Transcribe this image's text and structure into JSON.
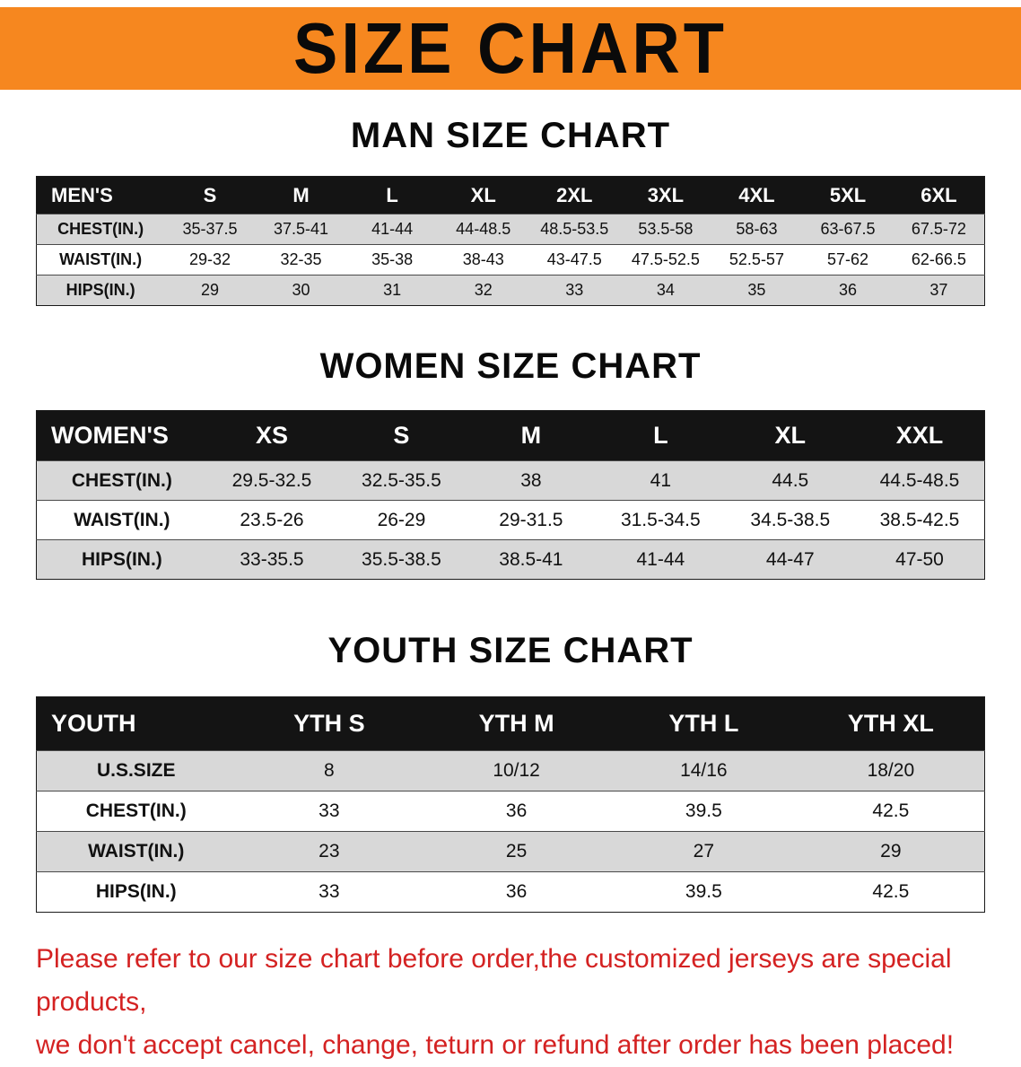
{
  "banner": {
    "title": "SIZE CHART"
  },
  "colors": {
    "banner_orange": "#f6871f",
    "header_black": "#141414",
    "row_gray": "#d8d8d8",
    "disclaimer_red": "#d42222"
  },
  "sections": [
    {
      "heading": "MAN SIZE CHART",
      "table": {
        "title": "MEN'S",
        "columns": [
          "S",
          "M",
          "L",
          "XL",
          "2XL",
          "3XL",
          "4XL",
          "5XL",
          "6XL"
        ],
        "rows": [
          {
            "label": "CHEST(IN.)",
            "values": [
              "35-37.5",
              "37.5-41",
              "41-44",
              "44-48.5",
              "48.5-53.5",
              "53.5-58",
              "58-63",
              "63-67.5",
              "67.5-72"
            ]
          },
          {
            "label": "WAIST(IN.)",
            "values": [
              "29-32",
              "32-35",
              "35-38",
              "38-43",
              "43-47.5",
              "47.5-52.5",
              "52.5-57",
              "57-62",
              "62-66.5"
            ]
          },
          {
            "label": "HIPS(IN.)",
            "values": [
              "29",
              "30",
              "31",
              "32",
              "33",
              "34",
              "35",
              "36",
              "37"
            ]
          }
        ]
      }
    },
    {
      "heading": "WOMEN SIZE CHART",
      "table": {
        "title": "WOMEN'S",
        "columns": [
          "XS",
          "S",
          "M",
          "L",
          "XL",
          "XXL"
        ],
        "rows": [
          {
            "label": "CHEST(IN.)",
            "values": [
              "29.5-32.5",
              "32.5-35.5",
              "38",
              "41",
              "44.5",
              "44.5-48.5"
            ]
          },
          {
            "label": "WAIST(IN.)",
            "values": [
              "23.5-26",
              "26-29",
              "29-31.5",
              "31.5-34.5",
              "34.5-38.5",
              "38.5-42.5"
            ]
          },
          {
            "label": "HIPS(IN.)",
            "values": [
              "33-35.5",
              "35.5-38.5",
              "38.5-41",
              "41-44",
              "44-47",
              "47-50"
            ]
          }
        ]
      }
    },
    {
      "heading": "YOUTH SIZE CHART",
      "table": {
        "title": "YOUTH",
        "columns": [
          "YTH S",
          "YTH M",
          "YTH L",
          "YTH XL"
        ],
        "rows": [
          {
            "label": "U.S.SIZE",
            "values": [
              "8",
              "10/12",
              "14/16",
              "18/20"
            ]
          },
          {
            "label": "CHEST(IN.)",
            "values": [
              "33",
              "36",
              "39.5",
              "42.5"
            ]
          },
          {
            "label": "WAIST(IN.)",
            "values": [
              "23",
              "25",
              "27",
              "29"
            ]
          },
          {
            "label": "HIPS(IN.)",
            "values": [
              "33",
              "36",
              "39.5",
              "42.5"
            ]
          }
        ]
      }
    }
  ],
  "disclaimer": {
    "line1": "Please refer to our size chart before order,the customized jerseys are special products,",
    "line2": "we don't accept cancel, change, teturn or refund after order has been placed!"
  }
}
